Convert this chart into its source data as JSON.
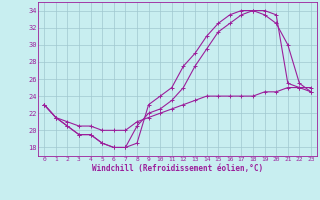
{
  "xlabel": "Windchill (Refroidissement éolien,°C)",
  "bg_color": "#c8eef0",
  "grid_color": "#a0c8d0",
  "line_color": "#9b1f9b",
  "xlim": [
    -0.5,
    23.5
  ],
  "ylim": [
    17,
    35
  ],
  "yticks": [
    18,
    20,
    22,
    24,
    26,
    28,
    30,
    32,
    34
  ],
  "xticks": [
    0,
    1,
    2,
    3,
    4,
    5,
    6,
    7,
    8,
    9,
    10,
    11,
    12,
    13,
    14,
    15,
    16,
    17,
    18,
    19,
    20,
    21,
    22,
    23
  ],
  "series1": {
    "x": [
      0,
      1,
      2,
      3,
      4,
      5,
      6,
      7,
      8,
      9,
      10,
      11,
      12,
      13,
      14,
      15,
      16,
      17,
      18,
      19,
      20,
      21,
      22,
      23
    ],
    "y": [
      23,
      21.5,
      20.5,
      19.5,
      19.5,
      18.5,
      18,
      18,
      18.5,
      23,
      24,
      25,
      27.5,
      29,
      31,
      32.5,
      33.5,
      34,
      34,
      34,
      33.5,
      25.5,
      25,
      24.5
    ]
  },
  "series2": {
    "x": [
      0,
      1,
      2,
      3,
      4,
      5,
      6,
      7,
      8,
      9,
      10,
      11,
      12,
      13,
      14,
      15,
      16,
      17,
      18,
      19,
      20,
      21,
      22,
      23
    ],
    "y": [
      23,
      21.5,
      20.5,
      19.5,
      19.5,
      18.5,
      18,
      18,
      20.5,
      22,
      22.5,
      23.5,
      25,
      27.5,
      29.5,
      31.5,
      32.5,
      33.5,
      34,
      33.5,
      32.5,
      30,
      25.5,
      24.5
    ]
  },
  "series3": {
    "x": [
      0,
      1,
      2,
      3,
      4,
      5,
      6,
      7,
      8,
      9,
      10,
      11,
      12,
      13,
      14,
      15,
      16,
      17,
      18,
      19,
      20,
      21,
      22,
      23
    ],
    "y": [
      23,
      21.5,
      21,
      20.5,
      20.5,
      20,
      20,
      20,
      21,
      21.5,
      22,
      22.5,
      23,
      23.5,
      24,
      24,
      24,
      24,
      24,
      24.5,
      24.5,
      25,
      25,
      25
    ]
  },
  "font_size_tick": 4.5,
  "font_size_label": 5.5,
  "linewidth": 0.8,
  "markersize": 2.5
}
